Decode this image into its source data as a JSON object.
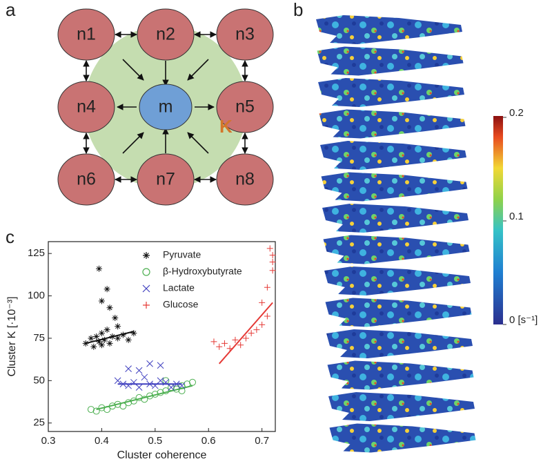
{
  "panels": {
    "a": "a",
    "b": "b",
    "c": "c"
  },
  "diagram": {
    "nodes": [
      "n1",
      "n2",
      "n3",
      "n4",
      "m",
      "n5",
      "n6",
      "n7",
      "n8"
    ],
    "region_label": "K"
  },
  "colorbar": {
    "lim": [
      0,
      0.2
    ],
    "ticks": [
      {
        "value": 0,
        "label": "0 [s⁻¹]"
      },
      0.1,
      0.2
    ]
  },
  "chart_data": {
    "type": "scatter",
    "xlabel": "Cluster coherence",
    "ylabel": "Cluster K  [·10⁻³]",
    "xlim": [
      0.3,
      0.725
    ],
    "ylim": [
      20,
      132
    ],
    "xticks": [
      0.3,
      0.4,
      0.5,
      0.6,
      0.7
    ],
    "yticks": [
      25,
      50,
      75,
      100,
      125
    ],
    "series": [
      {
        "name": "Pyruvate",
        "color": "#111111",
        "marker": "star",
        "x": [
          0.37,
          0.38,
          0.385,
          0.39,
          0.395,
          0.4,
          0.4,
          0.405,
          0.41,
          0.415,
          0.42,
          0.43,
          0.44,
          0.45,
          0.46,
          0.395,
          0.41,
          0.4,
          0.415,
          0.425,
          0.43
        ],
        "values": [
          72,
          75,
          70,
          76,
          73,
          71,
          78,
          74,
          80,
          72,
          76,
          75,
          77,
          74,
          78,
          116,
          104,
          97,
          93,
          87,
          82
        ],
        "fit": {
          "x": [
            0.37,
            0.46
          ],
          "values": [
            72,
            79
          ]
        }
      },
      {
        "name": "β-Hydroxybutyrate",
        "color": "#4caf50",
        "marker": "circle",
        "x": [
          0.38,
          0.39,
          0.4,
          0.41,
          0.42,
          0.43,
          0.44,
          0.45,
          0.46,
          0.47,
          0.48,
          0.49,
          0.5,
          0.51,
          0.52,
          0.53,
          0.54,
          0.55,
          0.56,
          0.57,
          0.55,
          0.52
        ],
        "values": [
          33,
          32,
          34,
          33,
          35,
          36,
          35,
          37,
          38,
          40,
          39,
          41,
          42,
          43,
          44,
          46,
          45,
          47,
          48,
          49,
          44,
          50
        ],
        "fit": {
          "x": [
            0.39,
            0.57
          ],
          "values": [
            33,
            47
          ]
        }
      },
      {
        "name": "Lactate",
        "color": "#3f3fbf",
        "marker": "x",
        "x": [
          0.43,
          0.44,
          0.45,
          0.46,
          0.47,
          0.48,
          0.49,
          0.5,
          0.51,
          0.52,
          0.53,
          0.54,
          0.55,
          0.45,
          0.47,
          0.49,
          0.51
        ],
        "values": [
          50,
          48,
          47,
          49,
          46,
          52,
          48,
          47,
          50,
          49,
          46,
          48,
          47,
          57,
          56,
          60,
          59
        ],
        "fit": {
          "x": [
            0.43,
            0.55
          ],
          "values": [
            48,
            48
          ]
        }
      },
      {
        "name": "Glucose",
        "color": "#e53935",
        "marker": "plus",
        "x": [
          0.61,
          0.62,
          0.63,
          0.64,
          0.65,
          0.66,
          0.67,
          0.68,
          0.69,
          0.7,
          0.71,
          0.7,
          0.71,
          0.72,
          0.72,
          0.715,
          0.72
        ],
        "values": [
          73,
          70,
          72,
          69,
          74,
          71,
          75,
          78,
          80,
          83,
          88,
          96,
          105,
          115,
          120,
          128,
          124
        ],
        "fit": {
          "x": [
            0.62,
            0.72
          ],
          "values": [
            60,
            96
          ]
        }
      }
    ]
  }
}
